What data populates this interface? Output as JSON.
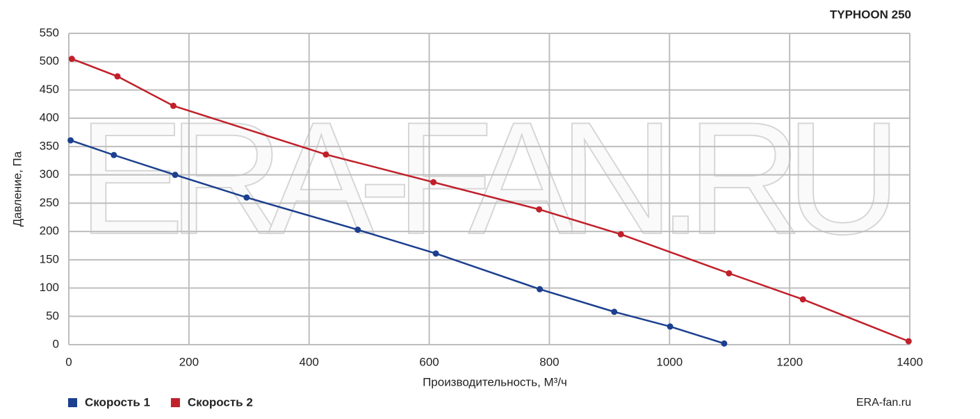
{
  "chart_data": {
    "type": "line",
    "title": "TYPHOON 250",
    "watermark": "ERA-FAN.RU",
    "source": "ERA-fan.ru",
    "x_label": "Производительность, М³/ч",
    "y_label": "Давление, Па",
    "xlim": [
      0,
      1400
    ],
    "xticks": [
      0,
      200,
      400,
      600,
      800,
      1000,
      1200,
      1400
    ],
    "ylim": [
      0,
      550
    ],
    "yticks": [
      0,
      50,
      100,
      150,
      200,
      250,
      300,
      350,
      400,
      450,
      500,
      550
    ],
    "grid": true,
    "legend": "bottom-left",
    "series": [
      {
        "name": "Скорость 1",
        "color": "#1c3f8f",
        "x": [
          3,
          75,
          177,
          296,
          481,
          611,
          784,
          908,
          1001,
          1091
        ],
        "values": [
          361,
          335,
          300,
          260,
          203,
          161,
          98,
          58,
          32,
          2
        ]
      },
      {
        "name": "Скорость 2",
        "color": "#c0202a",
        "x": [
          5,
          81,
          174,
          428,
          607,
          783,
          919,
          1099,
          1222,
          1398
        ],
        "values": [
          505,
          474,
          422,
          336,
          287,
          239,
          195,
          126,
          80,
          6
        ]
      }
    ]
  }
}
